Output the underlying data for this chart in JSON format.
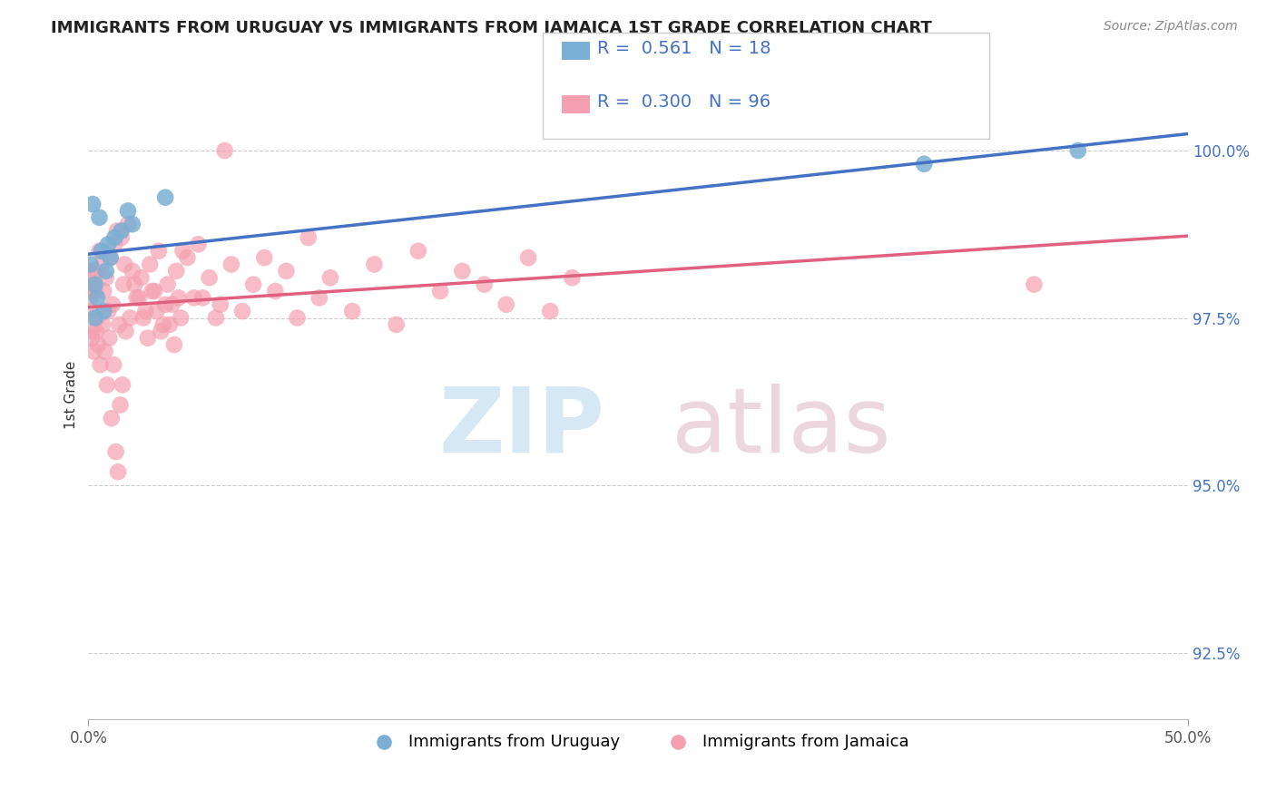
{
  "title": "IMMIGRANTS FROM URUGUAY VS IMMIGRANTS FROM JAMAICA 1ST GRADE CORRELATION CHART",
  "source_text": "Source: ZipAtlas.com",
  "ylabel": "1st Grade",
  "xlim": [
    0.0,
    50.0
  ],
  "ylim": [
    91.5,
    101.2
  ],
  "yticks": [
    92.5,
    95.0,
    97.5,
    100.0
  ],
  "ytick_labels": [
    "92.5%",
    "95.0%",
    "97.5%",
    "100.0%"
  ],
  "xticks": [
    0.0,
    50.0
  ],
  "xtick_labels": [
    "0.0%",
    "50.0%"
  ],
  "legend_r_uruguay": "0.561",
  "legend_n_uruguay": "18",
  "legend_r_jamaica": "0.300",
  "legend_n_jamaica": "96",
  "uruguay_color": "#7bafd4",
  "jamaica_color": "#f4a0b0",
  "trendline_uruguay_color": "#4472C4",
  "trendline_jamaica_color": "#e06080",
  "background_color": "#ffffff",
  "uruguay_x": [
    0.2,
    0.5,
    1.8,
    0.8,
    3.5,
    0.3,
    0.4,
    0.6,
    1.2,
    1.0,
    0.9,
    1.5,
    0.7,
    2.0,
    0.1,
    45.0,
    38.0,
    0.3
  ],
  "uruguay_y": [
    99.2,
    99.0,
    99.1,
    98.2,
    99.3,
    98.0,
    97.8,
    98.5,
    98.7,
    98.4,
    98.6,
    98.8,
    97.6,
    98.9,
    98.3,
    100.0,
    99.8,
    97.5
  ],
  "jamaica_x": [
    0.1,
    0.2,
    0.3,
    0.4,
    0.5,
    0.6,
    0.7,
    0.8,
    0.9,
    1.0,
    1.1,
    1.2,
    1.3,
    1.4,
    1.5,
    1.6,
    1.7,
    1.8,
    1.9,
    2.0,
    2.2,
    2.4,
    2.6,
    2.8,
    3.0,
    3.2,
    3.4,
    3.6,
    3.8,
    4.0,
    4.2,
    4.5,
    4.8,
    5.0,
    5.5,
    6.0,
    6.5,
    7.0,
    7.5,
    8.0,
    8.5,
    9.0,
    9.5,
    10.0,
    10.5,
    11.0,
    12.0,
    13.0,
    14.0,
    15.0,
    16.0,
    17.0,
    18.0,
    19.0,
    20.0,
    21.0,
    22.0,
    0.15,
    0.25,
    0.35,
    0.45,
    0.55,
    0.65,
    0.75,
    0.85,
    0.95,
    1.05,
    1.15,
    1.25,
    1.35,
    1.45,
    1.55,
    1.65,
    2.1,
    2.3,
    2.5,
    2.7,
    2.9,
    3.1,
    3.3,
    3.5,
    3.7,
    3.9,
    4.1,
    4.3,
    0.05,
    0.08,
    0.12,
    0.18,
    0.22,
    0.28,
    5.2,
    5.8,
    6.2,
    43.0,
    0.32
  ],
  "jamaica_y": [
    97.8,
    98.0,
    98.2,
    97.5,
    98.5,
    98.3,
    97.9,
    98.1,
    97.6,
    98.4,
    97.7,
    98.6,
    98.8,
    97.4,
    98.7,
    98.0,
    97.3,
    98.9,
    97.5,
    98.2,
    97.8,
    98.1,
    97.6,
    98.3,
    97.9,
    98.5,
    97.4,
    98.0,
    97.7,
    98.2,
    97.5,
    98.4,
    97.8,
    98.6,
    98.1,
    97.7,
    98.3,
    97.6,
    98.0,
    98.4,
    97.9,
    98.2,
    97.5,
    98.7,
    97.8,
    98.1,
    97.6,
    98.3,
    97.4,
    98.5,
    97.9,
    98.2,
    98.0,
    97.7,
    98.4,
    97.6,
    98.1,
    97.2,
    97.0,
    97.3,
    97.1,
    96.8,
    97.4,
    97.0,
    96.5,
    97.2,
    96.0,
    96.8,
    95.5,
    95.2,
    96.2,
    96.5,
    98.3,
    98.0,
    97.8,
    97.5,
    97.2,
    97.9,
    97.6,
    97.3,
    97.7,
    97.4,
    97.1,
    97.8,
    98.5,
    98.2,
    97.9,
    97.6,
    97.3,
    98.0,
    98.1,
    97.8,
    97.5,
    100.0,
    98.0,
    97.9
  ]
}
